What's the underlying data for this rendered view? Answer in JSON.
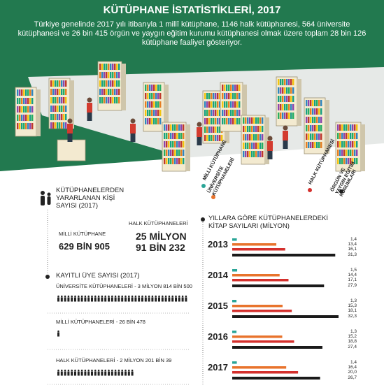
{
  "header": {
    "title": "KÜTÜPHANE İSTATİSTİKLERİ, 2017",
    "description": "Türkiye genelinde 2017 yılı itibarıyla 1 millî kütüphane, 1146 halk kütüphanesi, 564 üniversite kütüphanesi ve 26 bin 415 örgün ve yaygın eğitim kurumu kütüphanesi olmak üzere toplam 28 bin 126 kütüphane faaliyet gösteriyor."
  },
  "visitors": {
    "title": "KÜTÜPHANELERDEN YARARLANAN KİŞİ SAYISI (2017)",
    "items": [
      {
        "label": "MİLLİ KÜTÜPHANE",
        "value_text": "629 BİN 905"
      },
      {
        "label": "HALK KÜTÜPHANELERİ",
        "value_text": "25 MİLYON 91 BİN 232"
      }
    ]
  },
  "members": {
    "title": "KAYITLI ÜYE SAYISI (2017)",
    "rows": [
      {
        "label": "ÜNİVERSİTE KÜTÜPHANELERİ - 3 MİLYON 814 BİN 500",
        "value": 3814500
      },
      {
        "label": "MİLLİ KÜTÜPHANELERİ - 26 BİN 478",
        "value": 26478
      },
      {
        "label": "HALK KÜTÜPHANELERİ - 2 MİLYON 201 BİN 39",
        "value": 2201039
      }
    ]
  },
  "chart_data": {
    "type": "bar",
    "orientation": "horizontal",
    "title": "YILLARA GÖRE KÜTÜPHANELERDEKİ KİTAP SAYILARI (MİLYON)",
    "categories": [
      "2013",
      "2014",
      "2015",
      "2016",
      "2017"
    ],
    "series": [
      {
        "name": "MİLLİ KÜTÜPHANE",
        "color": "#2aa597",
        "values": [
          1.4,
          1.5,
          1.3,
          1.3,
          1.4
        ],
        "value_labels": [
          "1,4",
          "1,5",
          "1,3",
          "1,3",
          "1,4"
        ]
      },
      {
        "name": "ÜNİVERSİTE KÜTÜPHANELERİ",
        "color": "#e8732c",
        "values": [
          13.4,
          14.4,
          15.3,
          15.2,
          16.4
        ],
        "value_labels": [
          "13,4",
          "14,4",
          "15,3",
          "15,2",
          "16,4"
        ]
      },
      {
        "name": "HALK KÜTÜPHANESİ",
        "color": "#d4302d",
        "values": [
          16.1,
          17.1,
          18.1,
          18.8,
          20.0
        ],
        "value_labels": [
          "16,1",
          "17,1",
          "18,1",
          "18,8",
          "20,0"
        ]
      },
      {
        "name": "ÖRGÜN VE YAYGIN EĞİTİM KURUMLARI",
        "color": "#1a1a1a",
        "values": [
          31.3,
          27.9,
          32.3,
          27.4,
          26.7
        ],
        "value_labels": [
          "31,3",
          "27,9",
          "32,3",
          "27,4",
          "26,7"
        ]
      }
    ]
  }
}
